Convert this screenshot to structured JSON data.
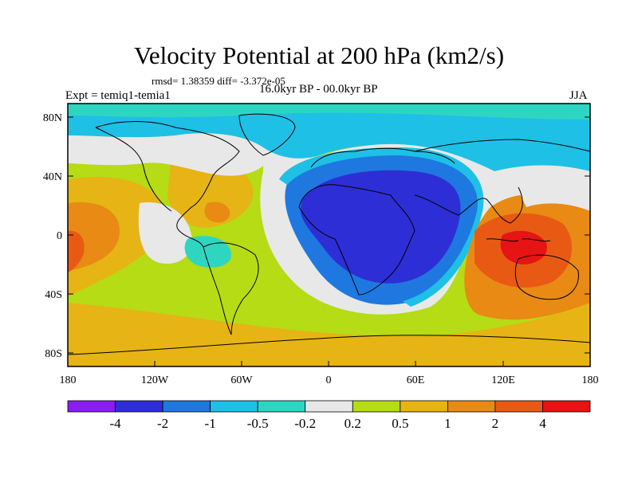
{
  "title": "Velocity Potential at 200 hPa (km2/s)",
  "stats_line": "rmsd= 1.38359 diff= -3.372e-05",
  "period": "16.0kyr BP - 00.0kyr BP",
  "experiment": "Expt = temiq1-temia1",
  "season": "JJA",
  "map": {
    "y_ticks": [
      "80N",
      "40N",
      "0",
      "40S",
      "80S"
    ],
    "x_ticks": [
      "180",
      "120W",
      "60W",
      "0",
      "60E",
      "120E",
      "180"
    ]
  },
  "colorbar": {
    "labels": [
      "-4",
      "-2",
      "-1",
      "-0.5",
      "-0.2",
      "0.2",
      "0.5",
      "1",
      "2",
      "4"
    ],
    "colors": [
      "#8a1ef0",
      "#2e2ed6",
      "#1e78e0",
      "#1ec0e6",
      "#2ed6c2",
      "#e8e8e8",
      "#b5dc14",
      "#e6b414",
      "#e88a14",
      "#e85a14",
      "#e61414"
    ]
  }
}
